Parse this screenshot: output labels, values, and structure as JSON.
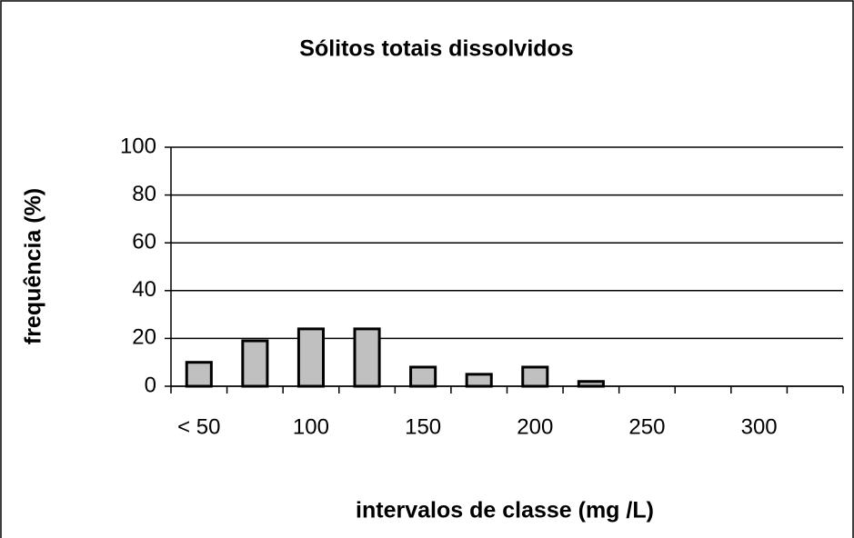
{
  "chart_data": {
    "type": "bar",
    "title": "Sólitos totais dissolvidos",
    "x_label": "intervalos de classe (mg /L)",
    "y_label": "frequência (%)",
    "categories": [
      "< 50",
      null,
      "100",
      null,
      "150",
      null,
      "200",
      null,
      "250",
      null,
      "300",
      null
    ],
    "values": [
      10,
      19,
      24,
      24,
      8,
      5,
      8,
      2,
      0,
      0,
      0,
      0
    ],
    "color": "#c0c0c0",
    "ylim": [
      0,
      100
    ],
    "yticks": [
      0,
      20,
      40,
      60,
      80,
      100
    ],
    "grid": true
  }
}
